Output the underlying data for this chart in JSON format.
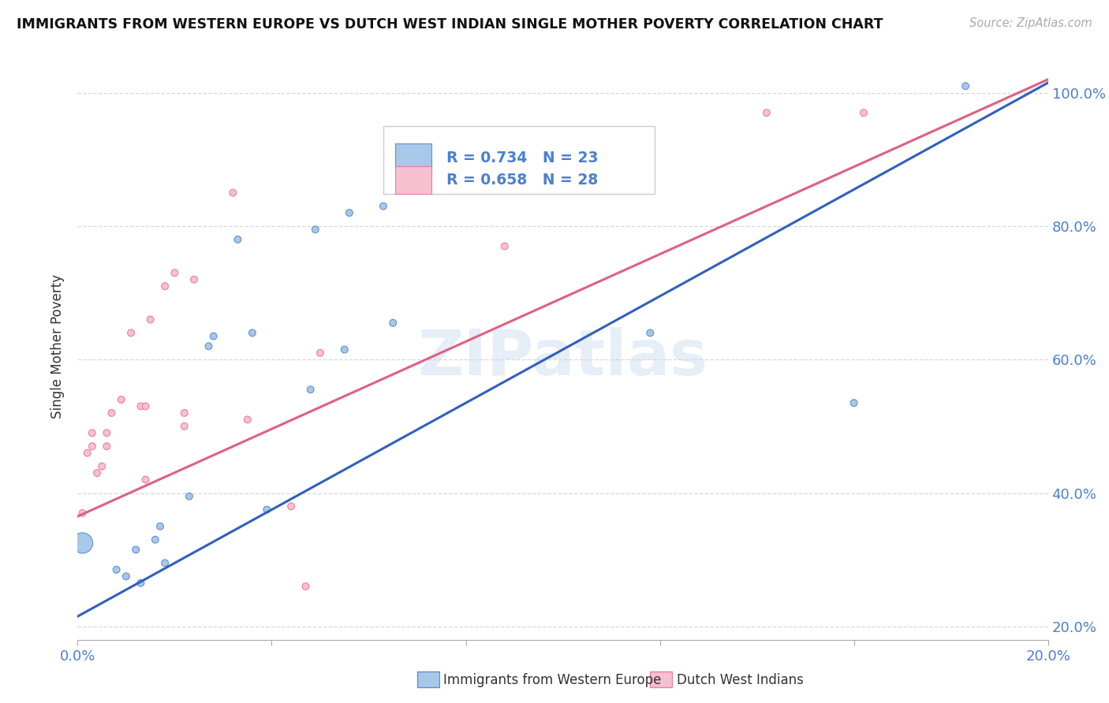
{
  "title": "IMMIGRANTS FROM WESTERN EUROPE VS DUTCH WEST INDIAN SINGLE MOTHER POVERTY CORRELATION CHART",
  "source": "Source: ZipAtlas.com",
  "ylabel": "Single Mother Poverty",
  "watermark": "ZIPatlas",
  "legend_blue_r": "R = 0.734",
  "legend_blue_n": "N = 23",
  "legend_pink_r": "R = 0.658",
  "legend_pink_n": "N = 28",
  "blue_fill": "#a8c8e8",
  "pink_fill": "#f8c0d0",
  "blue_edge": "#6090d0",
  "pink_edge": "#e880a0",
  "blue_line": "#3060c0",
  "pink_line": "#e06080",
  "text_blue": "#4a80d0",
  "text_dark": "#333333",
  "grid_color": "#d8d8d8",
  "blue_scatter_x": [
    0.001,
    0.008,
    0.01,
    0.012,
    0.013,
    0.016,
    0.017,
    0.018,
    0.023,
    0.027,
    0.028,
    0.033,
    0.036,
    0.039,
    0.048,
    0.049,
    0.055,
    0.056,
    0.063,
    0.065,
    0.118,
    0.16,
    0.183
  ],
  "blue_scatter_y": [
    0.325,
    0.285,
    0.275,
    0.315,
    0.265,
    0.33,
    0.35,
    0.295,
    0.395,
    0.62,
    0.635,
    0.78,
    0.64,
    0.375,
    0.555,
    0.795,
    0.615,
    0.82,
    0.83,
    0.655,
    0.64,
    0.535,
    1.01
  ],
  "blue_scatter_size": [
    350,
    40,
    40,
    40,
    40,
    40,
    40,
    40,
    40,
    40,
    40,
    40,
    40,
    40,
    40,
    40,
    40,
    40,
    40,
    40,
    40,
    40,
    40
  ],
  "pink_scatter_x": [
    0.001,
    0.002,
    0.003,
    0.003,
    0.004,
    0.005,
    0.006,
    0.006,
    0.007,
    0.009,
    0.011,
    0.013,
    0.014,
    0.014,
    0.015,
    0.018,
    0.02,
    0.022,
    0.022,
    0.024,
    0.032,
    0.035,
    0.044,
    0.047,
    0.05,
    0.088,
    0.142,
    0.162
  ],
  "pink_scatter_y": [
    0.37,
    0.46,
    0.47,
    0.49,
    0.43,
    0.44,
    0.47,
    0.49,
    0.52,
    0.54,
    0.64,
    0.53,
    0.53,
    0.42,
    0.66,
    0.71,
    0.73,
    0.5,
    0.52,
    0.72,
    0.85,
    0.51,
    0.38,
    0.26,
    0.61,
    0.77,
    0.97,
    0.97
  ],
  "pink_scatter_size": [
    40,
    40,
    40,
    40,
    40,
    40,
    40,
    40,
    40,
    40,
    40,
    40,
    40,
    40,
    40,
    40,
    40,
    40,
    40,
    40,
    40,
    40,
    40,
    40,
    40,
    40,
    40,
    40
  ],
  "xlim": [
    0.0,
    0.2
  ],
  "ylim": [
    0.18,
    1.06
  ],
  "blue_line_x0": 0.0,
  "blue_line_x1": 0.2,
  "blue_line_y0": 0.215,
  "blue_line_y1": 1.015,
  "pink_line_x0": 0.0,
  "pink_line_x1": 0.2,
  "pink_line_y0": 0.365,
  "pink_line_y1": 1.02,
  "ytick_vals": [
    0.2,
    0.4,
    0.6,
    0.8,
    1.0
  ],
  "ytick_labels": [
    "20.0%",
    "40.0%",
    "60.0%",
    "80.0%",
    "100.0%"
  ],
  "xtick_positions": [
    0.0,
    0.04,
    0.08,
    0.12,
    0.16,
    0.2
  ],
  "legend_label_blue": "Immigrants from Western Europe",
  "legend_label_pink": "Dutch West Indians"
}
